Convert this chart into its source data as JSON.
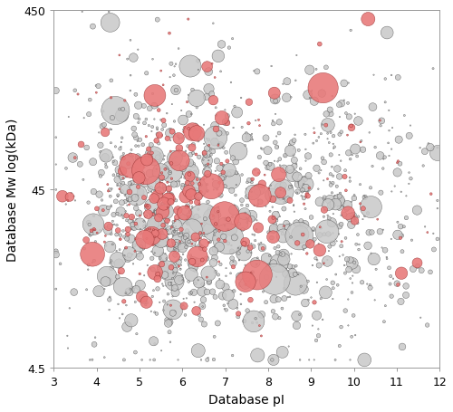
{
  "xlabel": "Database pI",
  "ylabel": "Database Mw log(kDa)",
  "xlim": [
    3,
    12
  ],
  "ylim_log": [
    4.5,
    450
  ],
  "yticks": [
    4.5,
    45,
    450
  ],
  "xticks": [
    3,
    4,
    5,
    6,
    7,
    8,
    9,
    10,
    11,
    12
  ],
  "gray_color": "#c8c8c8",
  "gray_edge": "#444444",
  "red_color": "#e87878",
  "red_edge": "#993333",
  "background": "#ffffff",
  "n_gray": 1400,
  "n_red": 280,
  "seed": 12
}
